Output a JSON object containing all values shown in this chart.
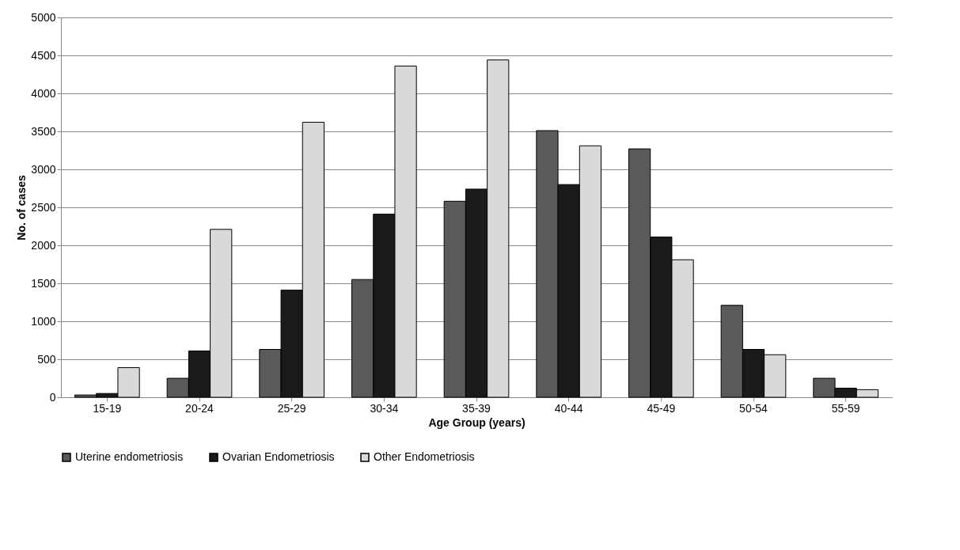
{
  "chart_data": {
    "type": "bar",
    "xlabel": "Age Group (years)",
    "ylabel": "No. of cases",
    "categories": [
      "15-19",
      "20-24",
      "25-29",
      "30-34",
      "35-39",
      "40-44",
      "45-49",
      "50-54",
      "55-59"
    ],
    "series": [
      {
        "name": "Uterine endometriosis",
        "color": "#5a5a5a",
        "values": [
          30,
          250,
          630,
          1550,
          2580,
          3510,
          3270,
          1210,
          250
        ]
      },
      {
        "name": "Ovarian Endometriosis",
        "color": "#1a1a1a",
        "values": [
          50,
          610,
          1410,
          2410,
          2740,
          2800,
          2110,
          630,
          120
        ]
      },
      {
        "name": "Other Endometriosis",
        "color": "#d9d9d9",
        "values": [
          390,
          2210,
          3620,
          4360,
          4440,
          3310,
          1810,
          560,
          100
        ]
      }
    ],
    "ylim": [
      0,
      5000
    ],
    "yticks": [
      0,
      500,
      1000,
      1500,
      2000,
      2500,
      3000,
      3500,
      4000,
      4500,
      5000
    ],
    "grid": "y",
    "legend": "bottom"
  }
}
